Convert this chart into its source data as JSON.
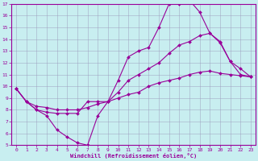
{
  "xlabel": "Windchill (Refroidissement éolien,°C)",
  "xlim": [
    -0.5,
    23.5
  ],
  "ylim": [
    5,
    17
  ],
  "yticks": [
    5,
    6,
    7,
    8,
    9,
    10,
    11,
    12,
    13,
    14,
    15,
    16,
    17
  ],
  "xticks": [
    0,
    1,
    2,
    3,
    4,
    5,
    6,
    7,
    8,
    9,
    10,
    11,
    12,
    13,
    14,
    15,
    16,
    17,
    18,
    19,
    20,
    21,
    22,
    23
  ],
  "bg_color": "#c8eef0",
  "line_color": "#990099",
  "grid_color": "#9999bb",
  "line1_x": [
    0,
    1,
    2,
    3,
    4,
    5,
    6,
    7,
    8,
    9,
    10,
    11,
    12,
    13,
    14,
    15,
    16,
    17,
    18,
    19,
    20,
    21,
    22,
    23
  ],
  "line1_y": [
    9.8,
    8.7,
    8.0,
    7.5,
    6.3,
    5.7,
    5.2,
    5.0,
    7.5,
    8.7,
    10.5,
    12.5,
    13.0,
    13.3,
    15.0,
    17.0,
    17.0,
    17.3,
    16.3,
    14.5,
    13.7,
    12.1,
    11.0,
    10.8
  ],
  "line2_x": [
    0,
    1,
    2,
    3,
    4,
    5,
    6,
    7,
    8,
    9,
    10,
    11,
    12,
    13,
    14,
    15,
    16,
    17,
    18,
    19,
    20,
    21,
    22,
    23
  ],
  "line2_y": [
    9.8,
    8.7,
    8.0,
    7.8,
    7.7,
    7.7,
    7.7,
    8.7,
    8.7,
    8.7,
    9.5,
    10.5,
    11.0,
    11.5,
    12.0,
    12.8,
    13.5,
    13.8,
    14.3,
    14.5,
    13.8,
    12.1,
    11.5,
    10.8
  ],
  "line3_x": [
    0,
    1,
    2,
    3,
    4,
    5,
    6,
    7,
    8,
    9,
    10,
    11,
    12,
    13,
    14,
    15,
    16,
    17,
    18,
    19,
    20,
    21,
    22,
    23
  ],
  "line3_y": [
    9.8,
    8.7,
    8.3,
    8.2,
    8.0,
    8.0,
    8.0,
    8.2,
    8.5,
    8.7,
    9.0,
    9.3,
    9.5,
    10.0,
    10.3,
    10.5,
    10.7,
    11.0,
    11.2,
    11.3,
    11.1,
    11.0,
    10.9,
    10.8
  ]
}
